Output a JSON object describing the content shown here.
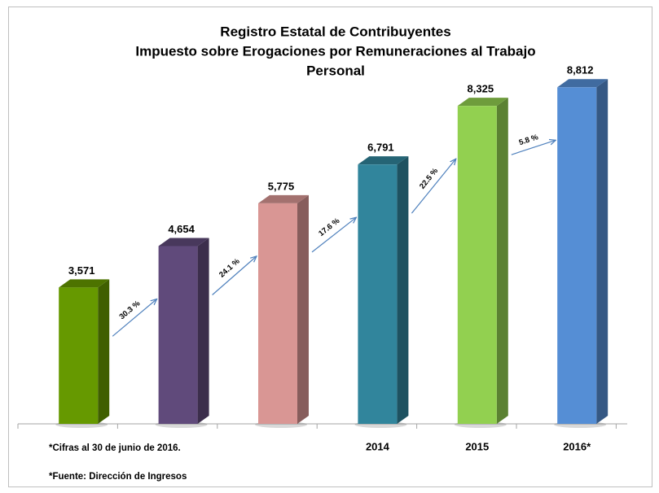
{
  "chart_data": {
    "type": "bar3d",
    "title": [
      "Registro Estatal de Contribuyentes",
      "Impuesto sobre Erogaciones por Remuneraciones al Trabajo",
      "Personal"
    ],
    "categories": [
      null,
      null,
      null,
      "2014",
      "2015",
      "2016*"
    ],
    "values": [
      3571,
      4654,
      5775,
      6791,
      8325,
      8812
    ],
    "value_labels": [
      "3,571",
      "4,654",
      "5,775",
      "6,791",
      "8,325",
      "8,812"
    ],
    "colors": [
      "#669900",
      "#604a7b",
      "#d99694",
      "#31859c",
      "#92d050",
      "#558ed5"
    ],
    "annotations": [
      "30.3 %",
      "24.1 %",
      "17.6 %",
      "22.5 %",
      "5.8 %"
    ],
    "notes": [
      "*Cifras al 30 de  junio de 2016.",
      "*Fuente: Dirección de Ingresos"
    ],
    "ylim": [
      0,
      9500
    ]
  }
}
